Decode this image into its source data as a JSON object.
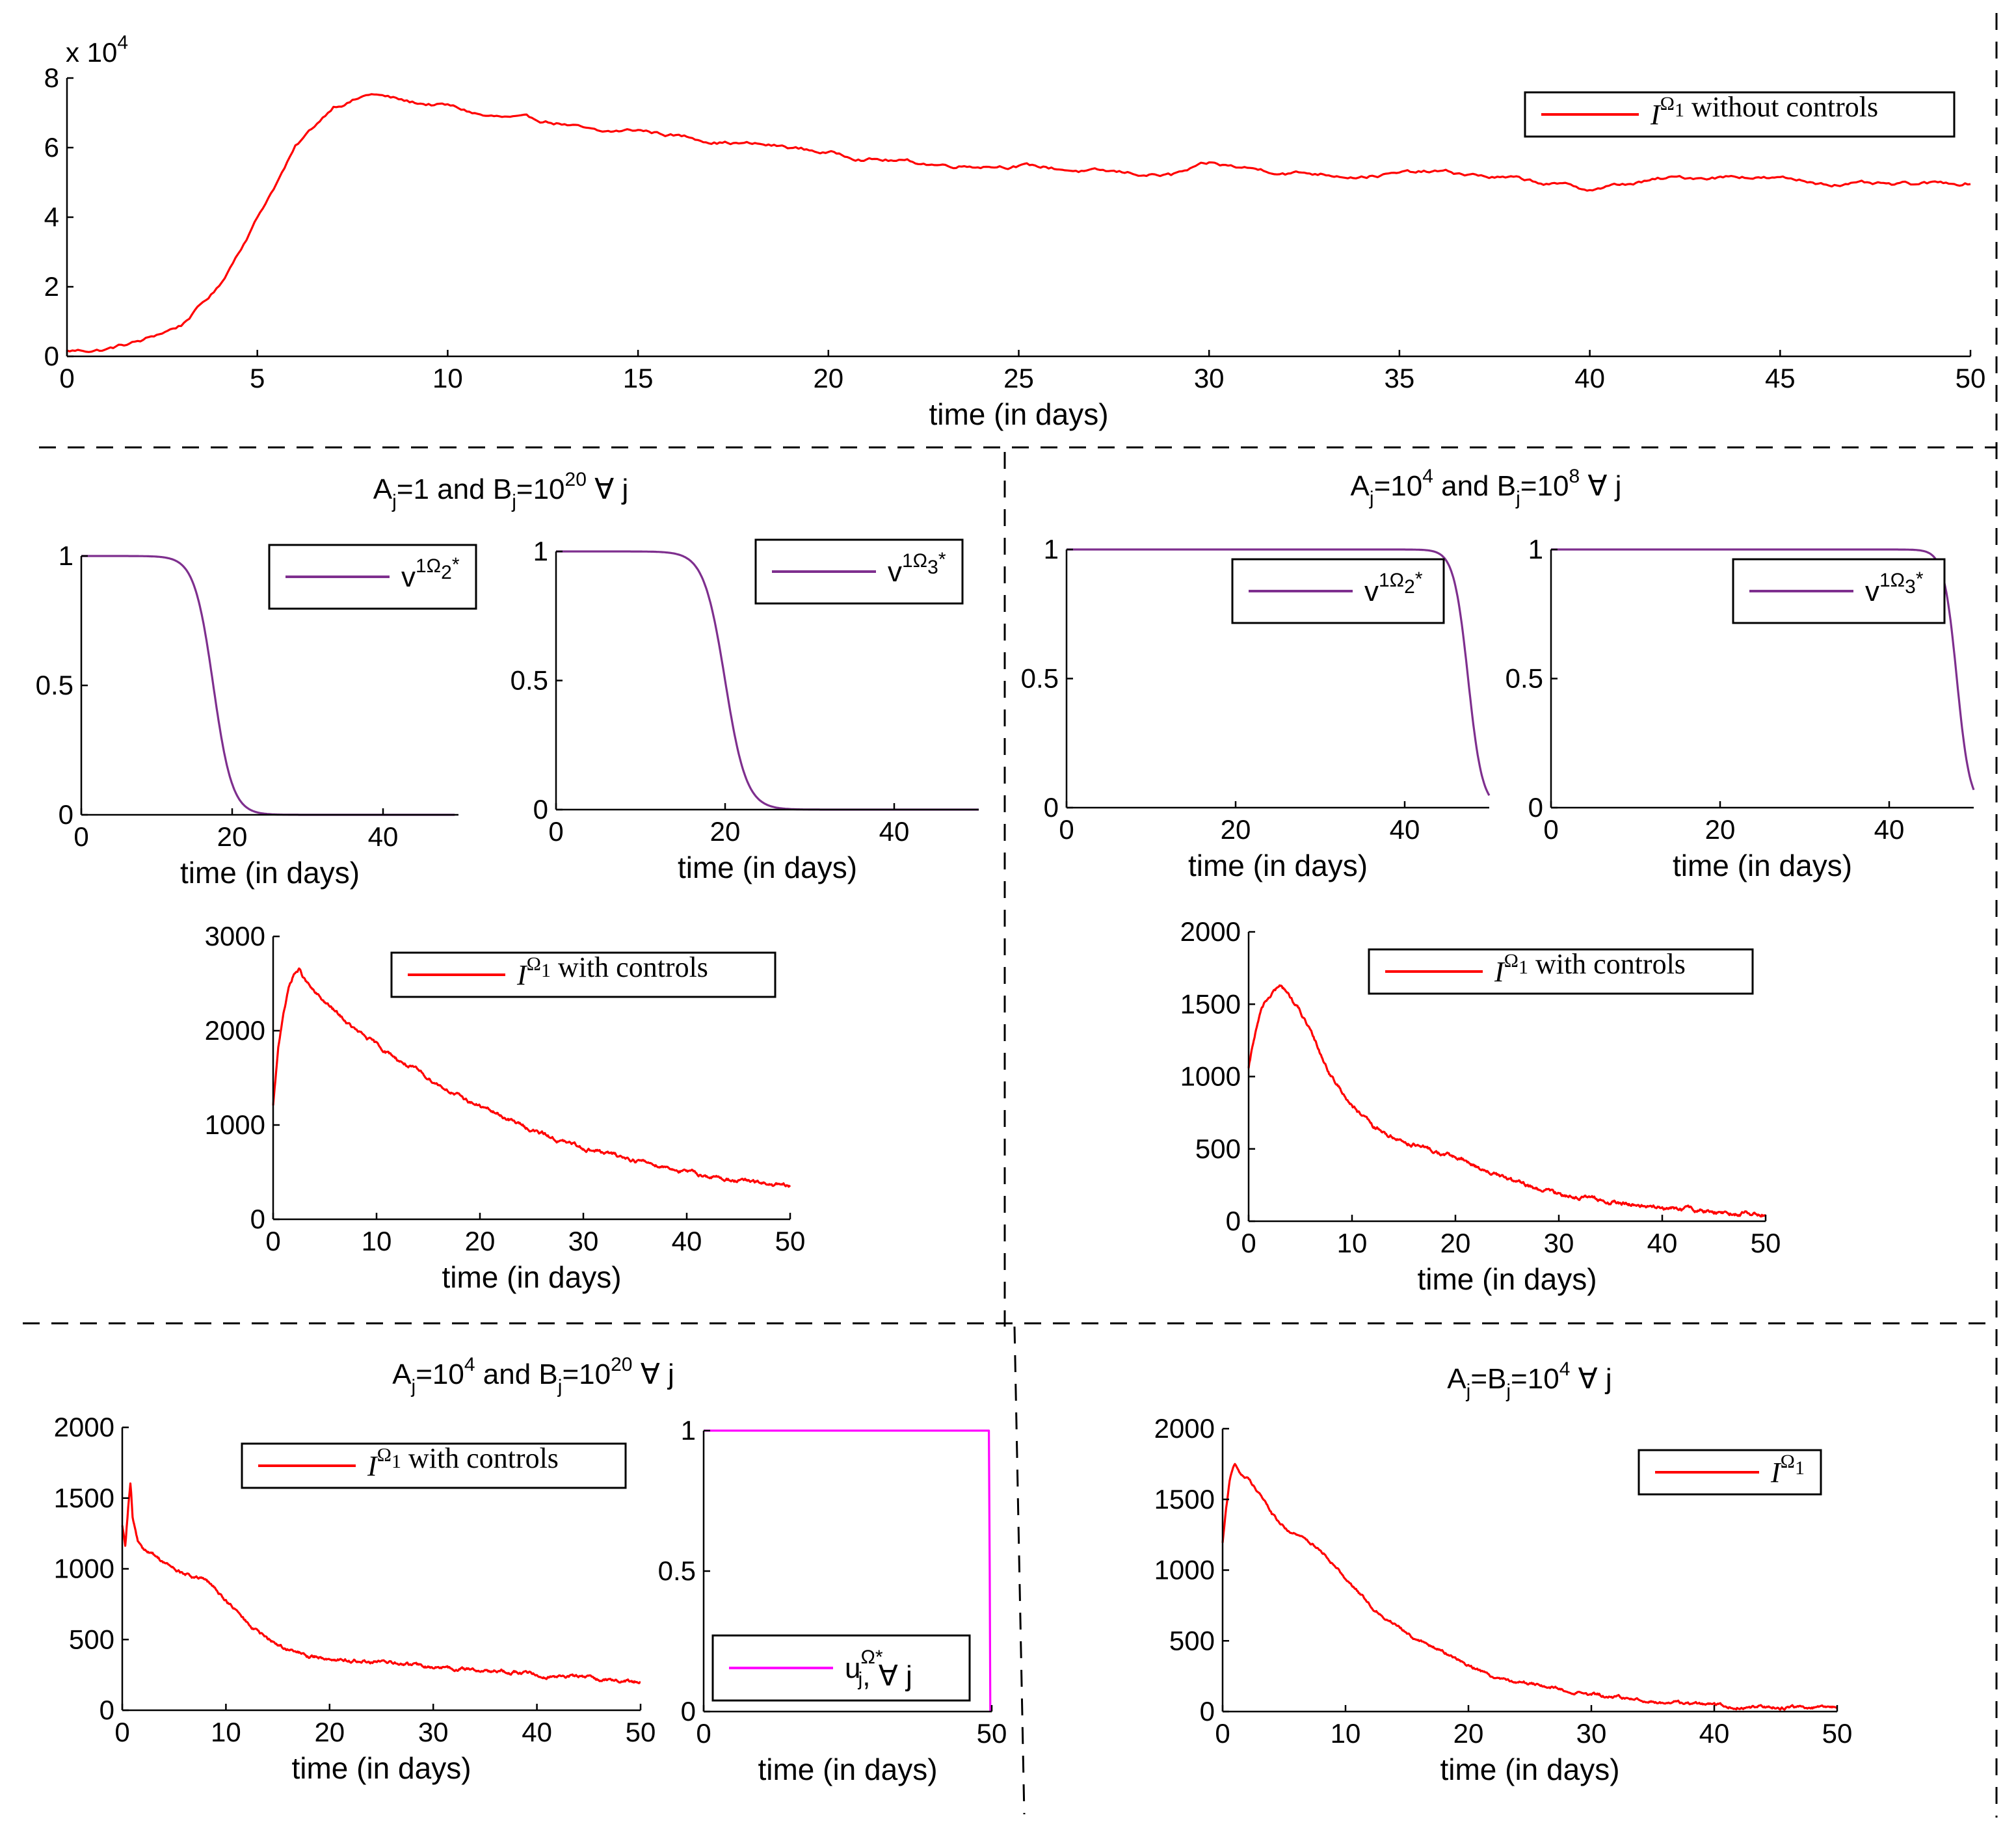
{
  "colors": {
    "red": "#ff0000",
    "purple": "#7e2f8e",
    "magenta": "#ff00ff"
  },
  "chart_data": [
    {
      "id": "p1",
      "type": "line",
      "title": "",
      "xlabel": "time (in days)",
      "ylabel": "",
      "xlim": [
        0,
        50
      ],
      "ylim": [
        0,
        8
      ],
      "y_multiplier": "x 10",
      "y_multiplier_exp": "4",
      "xticks": [
        0,
        5,
        10,
        15,
        20,
        25,
        30,
        35,
        40,
        45,
        50
      ],
      "yticks": [
        0,
        2,
        4,
        6,
        8
      ],
      "series": [
        {
          "name": "I^Ω1 without controls",
          "color": "#ff0000",
          "x": [
            0,
            1,
            2,
            3,
            4,
            5,
            6,
            7,
            8,
            9,
            10,
            11,
            12,
            13,
            14,
            15,
            17,
            19,
            21,
            23,
            25,
            27,
            29,
            30,
            32,
            34,
            36,
            38,
            40,
            42,
            44,
            46,
            48,
            50
          ],
          "y": [
            0.15,
            0.2,
            0.45,
            0.9,
            2.0,
            4.0,
            6.0,
            7.2,
            7.55,
            7.3,
            7.2,
            6.9,
            6.8,
            6.7,
            6.4,
            6.5,
            6.2,
            6.0,
            5.7,
            5.5,
            5.5,
            5.3,
            5.2,
            5.5,
            5.3,
            5.2,
            5.3,
            5.1,
            4.8,
            5.1,
            5.2,
            5.0,
            4.9,
            5.0
          ],
          "noise": 0.08
        }
      ],
      "legend": {
        "symbol": "I",
        "sup": "Ω",
        "supsub": "1",
        "text": "without controls"
      }
    },
    {
      "id": "p2a",
      "type": "line",
      "xlabel": "time (in days)",
      "xlim": [
        0,
        50
      ],
      "ylim": [
        0,
        1
      ],
      "xticks": [
        0,
        20,
        40
      ],
      "yticks": [
        0,
        0.5,
        1
      ],
      "ytick_labels": [
        "0",
        "0.5",
        "1"
      ],
      "series": [
        {
          "name": "v1Ω2*",
          "color": "#7e2f8e",
          "kind": "sigmoid",
          "t0": 17.5,
          "k": 0.8,
          "x_end": 49.5
        }
      ],
      "legend": {
        "symbol": "v",
        "sup": "1Ω",
        "supsub": "2",
        "star": "*"
      }
    },
    {
      "id": "p2b",
      "type": "line",
      "xlabel": "time (in days)",
      "xlim": [
        0,
        50
      ],
      "ylim": [
        0,
        1
      ],
      "xticks": [
        0,
        20,
        40
      ],
      "yticks": [
        0,
        0.5,
        1
      ],
      "ytick_labels": [
        "0",
        "0.5",
        "1"
      ],
      "series": [
        {
          "name": "v1Ω3*",
          "color": "#7e2f8e",
          "kind": "sigmoid",
          "t0": 20,
          "k": 0.8,
          "x_end": 50
        }
      ],
      "legend": {
        "symbol": "v",
        "sup": "1Ω",
        "supsub": "3",
        "star": "*"
      }
    },
    {
      "id": "p2c",
      "type": "line",
      "xlabel": "time (in days)",
      "xlim": [
        0,
        50
      ],
      "ylim": [
        0,
        3000
      ],
      "xticks": [
        0,
        10,
        20,
        30,
        40,
        50
      ],
      "yticks": [
        0,
        1000,
        2000,
        3000
      ],
      "series": [
        {
          "name": "I^Ω1 with controls",
          "color": "#ff0000",
          "x": [
            0,
            0.5,
            1,
            1.5,
            2,
            2.5,
            3,
            4,
            5,
            6,
            8,
            10,
            12,
            15,
            18,
            20,
            22,
            25,
            28,
            30,
            33,
            35,
            38,
            40,
            43,
            45,
            48,
            50
          ],
          "y": [
            1200,
            1800,
            2200,
            2450,
            2600,
            2650,
            2550,
            2400,
            2300,
            2200,
            2000,
            1850,
            1700,
            1500,
            1300,
            1200,
            1100,
            950,
            820,
            760,
            680,
            630,
            560,
            500,
            440,
            410,
            370,
            340
          ],
          "noise": 25
        }
      ],
      "legend": {
        "symbol": "I",
        "sup": "Ω",
        "supsub": "1",
        "text": "with controls"
      }
    },
    {
      "id": "p3a",
      "type": "line",
      "xlabel": "time (in days)",
      "xlim": [
        0,
        50
      ],
      "ylim": [
        0,
        1
      ],
      "xticks": [
        0,
        20,
        40
      ],
      "yticks": [
        0,
        0.5,
        1
      ],
      "ytick_labels": [
        "0",
        "0.5",
        "1"
      ],
      "series": [
        {
          "name": "v1Ω2*",
          "color": "#7e2f8e",
          "kind": "sigmoid",
          "t0": 47.5,
          "k": 1.2,
          "x_end": 50
        }
      ],
      "legend": {
        "symbol": "v",
        "sup": "1Ω",
        "supsub": "2",
        "star": "*"
      }
    },
    {
      "id": "p3b",
      "type": "line",
      "xlabel": "time (in days)",
      "xlim": [
        0,
        50
      ],
      "ylim": [
        0,
        1
      ],
      "xticks": [
        0,
        20,
        40
      ],
      "yticks": [
        0,
        0.5,
        1
      ],
      "ytick_labels": [
        "0",
        "0.5",
        "1"
      ],
      "series": [
        {
          "name": "v1Ω3*",
          "color": "#7e2f8e",
          "kind": "sigmoid",
          "t0": 48,
          "k": 1.3,
          "x_end": 50
        }
      ],
      "legend": {
        "symbol": "v",
        "sup": "1Ω",
        "supsub": "3",
        "star": "*"
      }
    },
    {
      "id": "p3c",
      "type": "line",
      "xlabel": "time (in days)",
      "xlim": [
        0,
        50
      ],
      "ylim": [
        0,
        2000
      ],
      "xticks": [
        0,
        10,
        20,
        30,
        40,
        50
      ],
      "yticks": [
        0,
        500,
        1000,
        1500,
        2000
      ],
      "series": [
        {
          "name": "I^Ω1 with controls",
          "color": "#ff0000",
          "x": [
            0,
            0.5,
            1,
            1.5,
            2,
            2.5,
            3,
            3.5,
            4,
            5,
            6,
            7,
            8,
            10,
            12,
            14,
            16,
            18,
            20,
            22,
            25,
            28,
            30,
            33,
            35,
            38,
            40,
            43,
            45,
            48,
            50
          ],
          "y": [
            1050,
            1250,
            1400,
            1500,
            1550,
            1600,
            1620,
            1600,
            1550,
            1450,
            1300,
            1150,
            1000,
            800,
            650,
            580,
            530,
            480,
            440,
            380,
            290,
            220,
            190,
            160,
            130,
            110,
            90,
            75,
            65,
            55,
            50
          ],
          "noise": 18
        }
      ],
      "legend": {
        "symbol": "I",
        "sup": "Ω",
        "supsub": "1",
        "text": "with controls"
      }
    },
    {
      "id": "p4a",
      "type": "line",
      "xlabel": "time (in days)",
      "xlim": [
        0,
        50
      ],
      "ylim": [
        0,
        2000
      ],
      "xticks": [
        0,
        10,
        20,
        30,
        40,
        50
      ],
      "yticks": [
        0,
        500,
        1000,
        1500,
        2000
      ],
      "series": [
        {
          "name": "I^Ω1 with controls",
          "color": "#ff0000",
          "x": [
            0,
            0.3,
            0.6,
            0.8,
            1,
            1.5,
            2,
            3,
            4,
            5,
            6,
            8,
            10,
            12,
            14,
            16,
            18,
            20,
            22,
            25,
            28,
            30,
            33,
            35,
            38,
            40,
            43,
            45,
            48,
            50
          ],
          "y": [
            1300,
            1150,
            1450,
            1600,
            1350,
            1200,
            1150,
            1100,
            1050,
            1000,
            960,
            920,
            780,
            620,
            500,
            430,
            380,
            370,
            350,
            340,
            320,
            300,
            290,
            280,
            270,
            250,
            240,
            230,
            210,
            200
          ],
          "noise": 15
        }
      ],
      "legend": {
        "symbol": "I",
        "sup": "Ω",
        "supsub": "1",
        "text": "with controls"
      }
    },
    {
      "id": "p4b",
      "type": "line",
      "xlabel": "time (in days)",
      "xlim": [
        0,
        50
      ],
      "ylim": [
        0,
        1
      ],
      "xticks": [
        0,
        50
      ],
      "yticks": [
        0,
        0.5,
        1
      ],
      "ytick_labels": [
        "0",
        "0.5",
        "1"
      ],
      "series": [
        {
          "name": "uΩj*, ∀ j",
          "color": "#ff00ff",
          "kind": "step",
          "drop": 49.5
        }
      ],
      "legend": {
        "symbol": "u",
        "sup": "Ω",
        "supsub": "",
        "star": "*",
        "sub": "j",
        "text": ", ∀ j"
      }
    },
    {
      "id": "p4c",
      "type": "line",
      "xlabel": "time (in days)",
      "xlim": [
        0,
        50
      ],
      "ylim": [
        0,
        2000
      ],
      "xticks": [
        0,
        10,
        20,
        30,
        40,
        50
      ],
      "yticks": [
        0,
        500,
        1000,
        1500,
        2000
      ],
      "series": [
        {
          "name": "I^Ω1",
          "color": "#ff0000",
          "x": [
            0,
            0.3,
            0.6,
            1,
            1.5,
            2,
            3,
            4,
            5,
            6,
            8,
            10,
            12,
            14,
            16,
            18,
            20,
            22,
            25,
            28,
            30,
            33,
            35,
            38,
            40,
            43,
            45,
            48,
            50
          ],
          "y": [
            1200,
            1450,
            1650,
            1750,
            1680,
            1650,
            1550,
            1400,
            1300,
            1250,
            1150,
            950,
            750,
            620,
            500,
            420,
            330,
            250,
            200,
            150,
            120,
            90,
            70,
            55,
            45,
            35,
            30,
            25,
            20
          ],
          "noise": 15
        }
      ],
      "legend": {
        "symbol": "I",
        "sup": "Ω",
        "supsub": "1",
        "text": ""
      }
    }
  ],
  "section_titles": [
    {
      "id": "s2",
      "A": "A",
      "Asub": "j",
      "Aeq": "=1 and ",
      "B": "B",
      "Bsub": "j",
      "Beq": "=10",
      "Bsup": "20",
      "tail": " ∀ j"
    },
    {
      "id": "s3",
      "A": "A",
      "Asub": "j",
      "Aeq": "=10",
      "Asup": "4",
      "and": " and ",
      "B": "B",
      "Bsub": "j",
      "Beq": "=10",
      "Bsup": "8",
      "tail": " ∀ j"
    },
    {
      "id": "s4",
      "A": "A",
      "Asub": "j",
      "Aeq": "=10",
      "Asup": "4",
      "and": " and ",
      "B": "B",
      "Bsub": "j",
      "Beq": "=10",
      "Bsup": "20",
      "tail": " ∀ j"
    },
    {
      "id": "s5",
      "A": "A",
      "Asub": "j",
      "Aeq": "=B",
      "Bsub": "j",
      "Beq": "=10",
      "Bsup": "4",
      "tail": " ∀ j"
    }
  ]
}
